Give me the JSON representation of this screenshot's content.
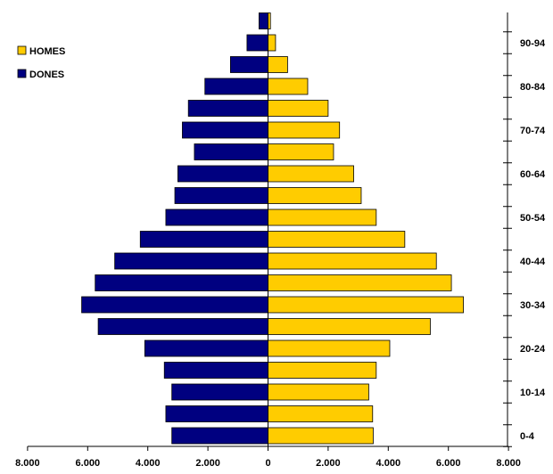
{
  "chart_data": {
    "type": "bar",
    "orientation": "horizontal-pyramid",
    "age_groups": [
      "0-4",
      "5-9",
      "10-14",
      "15-19",
      "20-24",
      "25-29",
      "30-34",
      "35-39",
      "40-44",
      "45-49",
      "50-54",
      "55-59",
      "60-64",
      "65-69",
      "70-74",
      "75-79",
      "80-84",
      "85-89",
      "90-94",
      "95+"
    ],
    "y_tick_labels": [
      "0-4",
      "10-14",
      "20-24",
      "30-34",
      "40-44",
      "50-54",
      "60-64",
      "70-74",
      "80-84",
      "90-94"
    ],
    "series": [
      {
        "name": "HOMES",
        "color": "#FFCC00",
        "side": "right",
        "values": [
          3500,
          3480,
          3350,
          3600,
          4050,
          5400,
          6500,
          6100,
          5600,
          4550,
          3600,
          3100,
          2850,
          2180,
          2380,
          2000,
          1320,
          650,
          250,
          80
        ]
      },
      {
        "name": "DONES",
        "color": "#000080",
        "side": "left",
        "values": [
          3200,
          3400,
          3200,
          3450,
          4100,
          5650,
          6200,
          5750,
          5100,
          4250,
          3400,
          3100,
          3000,
          2450,
          2850,
          2650,
          2100,
          1250,
          700,
          300
        ]
      }
    ],
    "x_tick_labels": [
      "8.000",
      "6.000",
      "4.000",
      "2.000",
      "0",
      "2.000",
      "4.000",
      "6.000",
      "8.000"
    ],
    "xlim": [
      -8000,
      8000
    ],
    "title": "",
    "xlabel": "",
    "ylabel": "",
    "legend_position": "top-left",
    "grid": false
  }
}
